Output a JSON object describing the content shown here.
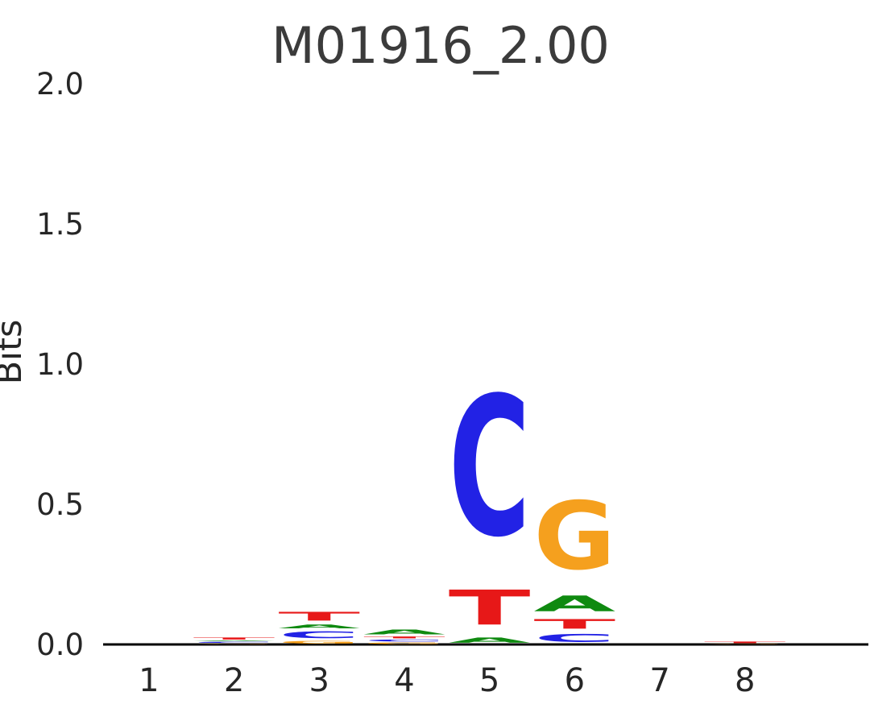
{
  "chart": {
    "title": "M01916_2.00",
    "ylabel": "Bits"
  },
  "chart_data": {
    "type": "sequence-logo",
    "title": "M01916_2.00",
    "xlabel": "",
    "ylabel": "Bits",
    "ylim": [
      0,
      2.0
    ],
    "yticks": [
      0.0,
      0.5,
      1.0,
      1.5,
      2.0
    ],
    "positions": [
      1,
      2,
      3,
      4,
      5,
      6,
      7,
      8
    ],
    "grid": false,
    "legend": false,
    "colors": {
      "A": "#0F8A10",
      "C": "#2222E5",
      "G": "#F5A01E",
      "T": "#E71818"
    },
    "stacks_note": "per position, letters listed bottom-to-top as [letter, bits]",
    "stacks": [
      [],
      [
        [
          "G",
          0.004
        ],
        [
          "C",
          0.007
        ],
        [
          "A",
          0.004
        ],
        [
          "T",
          0.012
        ]
      ],
      [
        [
          "G",
          0.015
        ],
        [
          "C",
          0.038
        ],
        [
          "A",
          0.022
        ],
        [
          "T",
          0.05
        ]
      ],
      [
        [
          "G",
          0.008
        ],
        [
          "C",
          0.012
        ],
        [
          "T",
          0.01
        ],
        [
          "A",
          0.028
        ]
      ],
      [
        [
          "A",
          0.03
        ],
        [
          "T",
          0.2
        ],
        [
          "C",
          0.8
        ]
      ],
      [
        [
          "C",
          0.045
        ],
        [
          "T",
          0.055
        ],
        [
          "A",
          0.09
        ],
        [
          "G",
          0.39
        ]
      ],
      [],
      [
        [
          "G",
          0.003
        ],
        [
          "T",
          0.009
        ]
      ]
    ]
  }
}
